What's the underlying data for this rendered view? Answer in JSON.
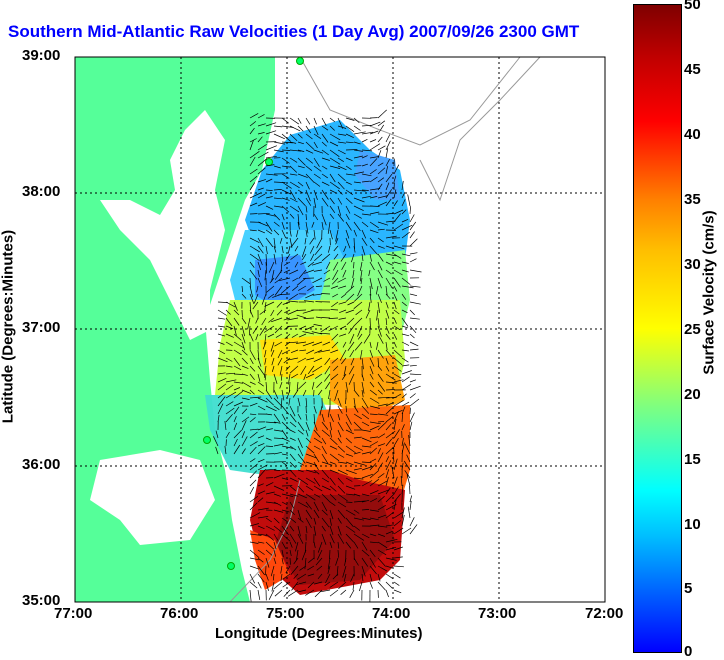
{
  "title": "Southern Mid-Atlantic Raw Velocities (1 Day Avg) 2007/09/26 2300 GMT",
  "xlabel": "Longitude (Degrees:Minutes)",
  "ylabel": "Latitude (Degrees:Minutes)",
  "x_ticks": [
    "77:00",
    "76:00",
    "75:00",
    "74:00",
    "73:00",
    "72:00"
  ],
  "y_ticks": [
    "39:00",
    "38:00",
    "37:00",
    "36:00",
    "35:00"
  ],
  "colorbar": {
    "label": "Surface Velocity (cm/s)",
    "ticks": [
      "0",
      "5",
      "10",
      "15",
      "20",
      "25",
      "30",
      "35",
      "40",
      "45",
      "50"
    ],
    "range": [
      0,
      50
    ]
  },
  "colors": {
    "land": "#55ff99",
    "water": "#ffffff",
    "title": "#0000ff"
  }
}
